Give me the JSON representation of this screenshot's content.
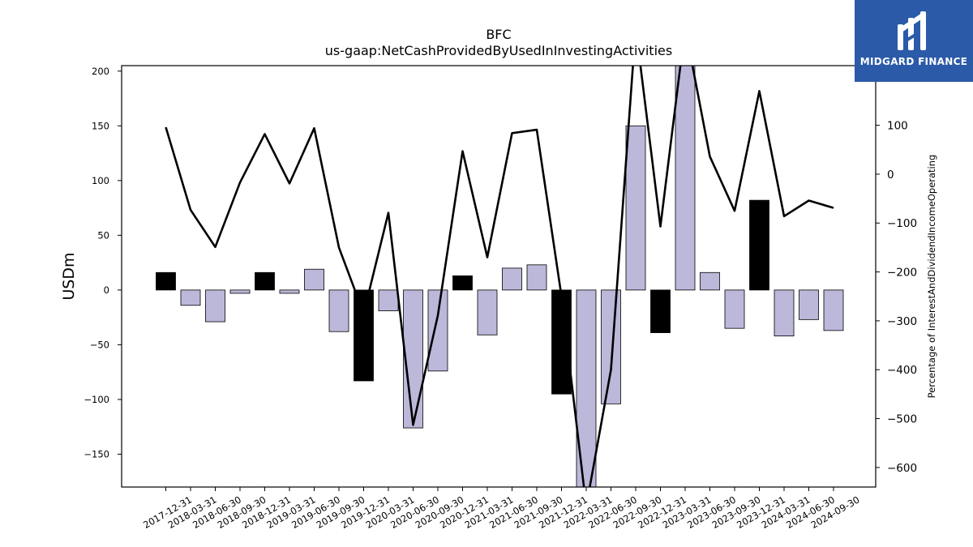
{
  "title": {
    "line1": "BFC",
    "line2": "us-gaap:NetCashProvidedByUsedInInvestingActivities"
  },
  "logo": {
    "text": "MIDGARD FINANCE",
    "bg": "#2b5aa8"
  },
  "chart_data": {
    "type": "bar+line",
    "ylabel": "USDm",
    "y2label": "Percentage of InterestAndDividendIncomeOperating",
    "ylim": [
      -180,
      205
    ],
    "y2lim": [
      -640,
      222
    ],
    "yticks": [
      -150,
      -100,
      -50,
      0,
      50,
      100,
      150,
      200
    ],
    "y2ticks": [
      -600,
      -500,
      -400,
      -300,
      -200,
      -100,
      0,
      100
    ],
    "colors": {
      "positive_bar": "#000000",
      "negative_bar": "#bcb8da",
      "line": "#000000"
    },
    "categories": [
      "2017-12-31",
      "2018-03-31",
      "2018-06-30",
      "2018-09-30",
      "2018-12-31",
      "2019-03-31",
      "2019-06-30",
      "2019-09-30",
      "2019-12-31",
      "2020-03-31",
      "2020-06-30",
      "2020-09-30",
      "2020-12-31",
      "2021-03-31",
      "2021-06-30",
      "2021-09-30",
      "2021-12-31",
      "2022-03-31",
      "2022-06-30",
      "2022-09-30",
      "2022-12-31",
      "2023-03-31",
      "2023-06-30",
      "2023-09-30",
      "2023-12-31",
      "2024-03-31",
      "2024-06-30",
      "2024-09-30"
    ],
    "bars": [
      16,
      -14,
      -29,
      -3,
      16,
      -3,
      19,
      -38,
      -83,
      -19,
      -126,
      -74,
      13,
      -41,
      20,
      23,
      -95,
      -185,
      -104,
      150,
      -39,
      205,
      16,
      -35,
      82,
      -42,
      -27,
      -37
    ],
    "bar_colored": [
      true,
      false,
      false,
      false,
      true,
      false,
      false,
      false,
      true,
      false,
      false,
      false,
      true,
      false,
      false,
      false,
      true,
      false,
      false,
      false,
      true,
      false,
      false,
      false,
      true,
      false,
      false,
      false
    ],
    "line": [
      96,
      -73,
      -149,
      -17,
      82,
      -19,
      94,
      -150,
      -285,
      -79,
      -513,
      -289,
      47,
      -170,
      84,
      91,
      -250,
      -680,
      -400,
      300,
      -107,
      300,
      36,
      -75,
      170,
      -86,
      -54,
      -69
    ]
  }
}
